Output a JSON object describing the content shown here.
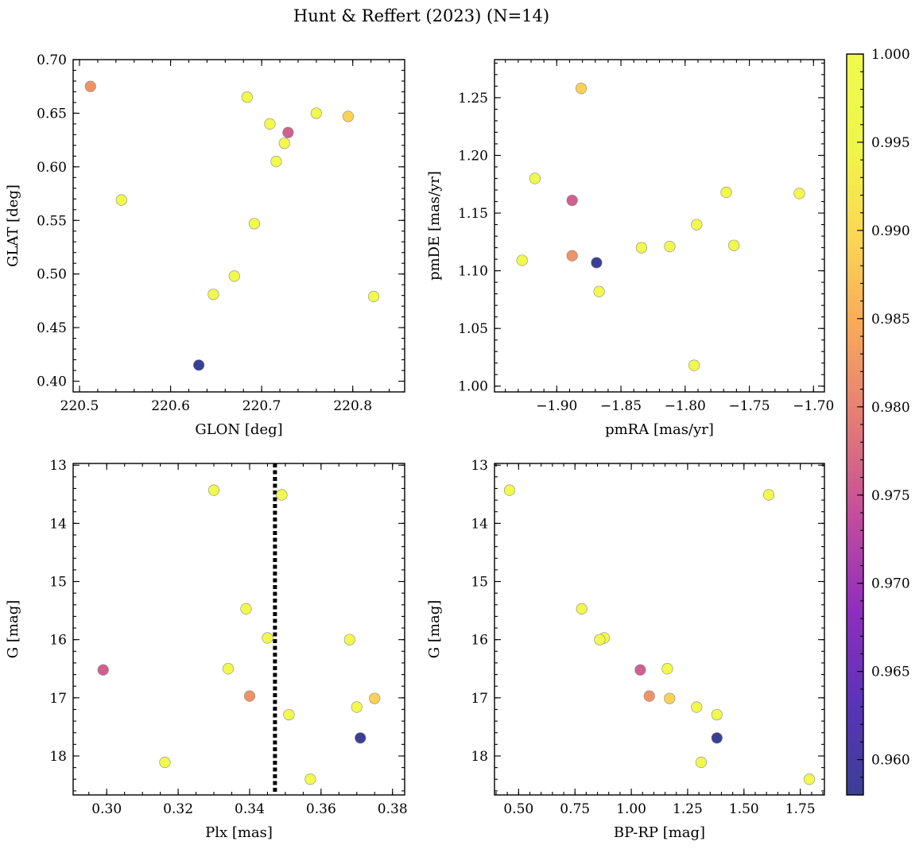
{
  "title": "Hunt & Reffert (2023) (N=14)",
  "colormap": {
    "name": "plasma",
    "min": 0.958,
    "max": 1.0,
    "ticks": [
      "0.960",
      "0.965",
      "0.970",
      "0.975",
      "0.980",
      "0.985",
      "0.990",
      "0.995",
      "1.000"
    ],
    "stops": [
      "#3a3f96",
      "#5b33b8",
      "#8f2ebd",
      "#c24c9d",
      "#e27a78",
      "#f8a65b",
      "#fbd655",
      "#eff64a",
      "#f0f94c"
    ]
  },
  "stars": {
    "glon": [
      220.512,
      220.546,
      220.631,
      220.647,
      220.67,
      220.684,
      220.692,
      220.709,
      220.716,
      220.725,
      220.729,
      220.76,
      220.795,
      220.823
    ],
    "glat": [
      0.675,
      0.569,
      0.415,
      0.481,
      0.498,
      0.665,
      0.547,
      0.64,
      0.605,
      0.622,
      0.632,
      0.65,
      0.647,
      0.479
    ],
    "pmra": [
      -1.888,
      -1.917,
      -1.869,
      -1.927,
      -1.793,
      -1.867,
      -1.834,
      -1.812,
      -1.791,
      -1.762,
      -1.888,
      -1.768,
      -1.881,
      -1.711
    ],
    "pmde": [
      1.113,
      1.18,
      1.107,
      1.109,
      1.018,
      1.082,
      1.12,
      1.121,
      1.14,
      1.122,
      1.161,
      1.168,
      1.258,
      1.167
    ],
    "plx": [
      0.34,
      0.334,
      0.371,
      0.33,
      0.339,
      0.351,
      0.345,
      0.3163,
      0.368,
      0.357,
      0.299,
      0.349,
      0.375,
      0.37
    ],
    "gmag": [
      16.97,
      16.5,
      17.69,
      13.43,
      15.47,
      17.29,
      15.97,
      18.11,
      16.0,
      18.4,
      16.52,
      13.51,
      17.01,
      17.16
    ],
    "bprp": [
      1.08,
      1.16,
      1.38,
      0.46,
      0.78,
      1.38,
      0.88,
      1.31,
      0.86,
      1.79,
      1.04,
      1.61,
      1.17,
      1.29
    ],
    "prob": [
      0.982,
      1.0,
      0.958,
      1.0,
      1.0,
      1.0,
      1.0,
      1.0,
      1.0,
      1.0,
      0.976,
      1.0,
      0.989,
      1.0
    ]
  },
  "chart_data": [
    {
      "type": "scatter",
      "title": "",
      "xlabel": "GLON [deg]",
      "ylabel": "GLAT [deg]",
      "x_field": "glon",
      "y_field": "glat",
      "xlim": [
        220.493,
        220.857
      ],
      "ylim": [
        0.39,
        0.7
      ],
      "y_inverted": false,
      "xticks": [
        220.5,
        220.6,
        220.7,
        220.8
      ],
      "xtick_labels": [
        "220.5",
        "220.6",
        "220.7",
        "220.8"
      ],
      "yticks": [
        0.4,
        0.45,
        0.5,
        0.55,
        0.6,
        0.65,
        0.7
      ],
      "ytick_labels": [
        "0.40",
        "0.45",
        "0.50",
        "0.55",
        "0.60",
        "0.65",
        "0.70"
      ],
      "minor_x_step": 0.02,
      "minor_y_step": 0.01,
      "vline": null
    },
    {
      "type": "scatter",
      "title": "",
      "xlabel": "pmRA [mas/yr]",
      "ylabel": "pmDE [mas/yr]",
      "x_field": "pmra",
      "y_field": "pmde",
      "xlim": [
        -1.9485,
        -1.6915
      ],
      "ylim": [
        0.995,
        1.283
      ],
      "y_inverted": false,
      "xticks": [
        -1.9,
        -1.85,
        -1.8,
        -1.75,
        -1.7
      ],
      "xtick_labels": [
        "−1.90",
        "−1.85",
        "−1.80",
        "−1.75",
        "−1.70"
      ],
      "yticks": [
        1.0,
        1.05,
        1.1,
        1.15,
        1.2,
        1.25
      ],
      "ytick_labels": [
        "1.00",
        "1.05",
        "1.10",
        "1.15",
        "1.20",
        "1.25"
      ],
      "minor_x_step": 0.01,
      "minor_y_step": 0.01,
      "vline": null
    },
    {
      "type": "scatter",
      "title": "",
      "xlabel": "Plx [mas]",
      "ylabel": "G [mag]",
      "x_field": "plx",
      "y_field": "gmag",
      "xlim": [
        0.2906,
        0.3834
      ],
      "ylim": [
        12.97,
        18.67
      ],
      "y_inverted": true,
      "xticks": [
        0.3,
        0.32,
        0.34,
        0.36,
        0.38
      ],
      "xtick_labels": [
        "0.30",
        "0.32",
        "0.34",
        "0.36",
        "0.38"
      ],
      "yticks": [
        13,
        14,
        15,
        16,
        17,
        18
      ],
      "ytick_labels": [
        "13",
        "14",
        "15",
        "16",
        "17",
        "18"
      ],
      "minor_x_step": 0.005,
      "minor_y_step": 0.2,
      "vline": {
        "x": 0.3471,
        "style": "dotted"
      }
    },
    {
      "type": "scatter",
      "title": "",
      "xlabel": "BP-RP [mag]",
      "ylabel": "G [mag]",
      "x_field": "bprp",
      "y_field": "gmag",
      "xlim": [
        0.393,
        1.857
      ],
      "ylim": [
        12.97,
        18.67
      ],
      "y_inverted": true,
      "xticks": [
        0.5,
        0.75,
        1.0,
        1.25,
        1.5,
        1.75
      ],
      "xtick_labels": [
        "0.50",
        "0.75",
        "1.00",
        "1.25",
        "1.50",
        "1.75"
      ],
      "yticks": [
        13,
        14,
        15,
        16,
        17,
        18
      ],
      "ytick_labels": [
        "13",
        "14",
        "15",
        "16",
        "17",
        "18"
      ],
      "minor_x_step": 0.05,
      "minor_y_step": 0.2,
      "vline": null
    }
  ]
}
